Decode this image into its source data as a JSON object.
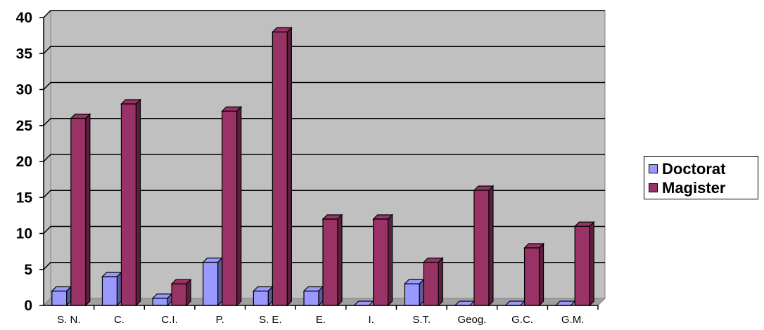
{
  "chart_data": {
    "type": "bar",
    "categories": [
      "S. N.",
      "C.",
      "C.I.",
      "P.",
      "S. E.",
      "E.",
      "I.",
      "S.T.",
      "Geog.",
      "G.C.",
      "G.M."
    ],
    "series": [
      {
        "name": "Doctorat",
        "values": [
          2,
          4,
          1,
          6,
          2,
          2,
          0,
          3,
          0,
          0,
          0
        ],
        "color": "#9999ff"
      },
      {
        "name": "Magister",
        "values": [
          26,
          28,
          3,
          27,
          38,
          12,
          12,
          6,
          16,
          8,
          11
        ],
        "color": "#993366"
      }
    ],
    "yticks": [
      "0",
      "5",
      "10",
      "15",
      "20",
      "25",
      "30",
      "35",
      "40"
    ],
    "ylim": [
      0,
      40
    ],
    "grid": true,
    "legend_position": "right",
    "plot_background": "#c0c0c0",
    "title": "",
    "xlabel": "",
    "ylabel": ""
  }
}
